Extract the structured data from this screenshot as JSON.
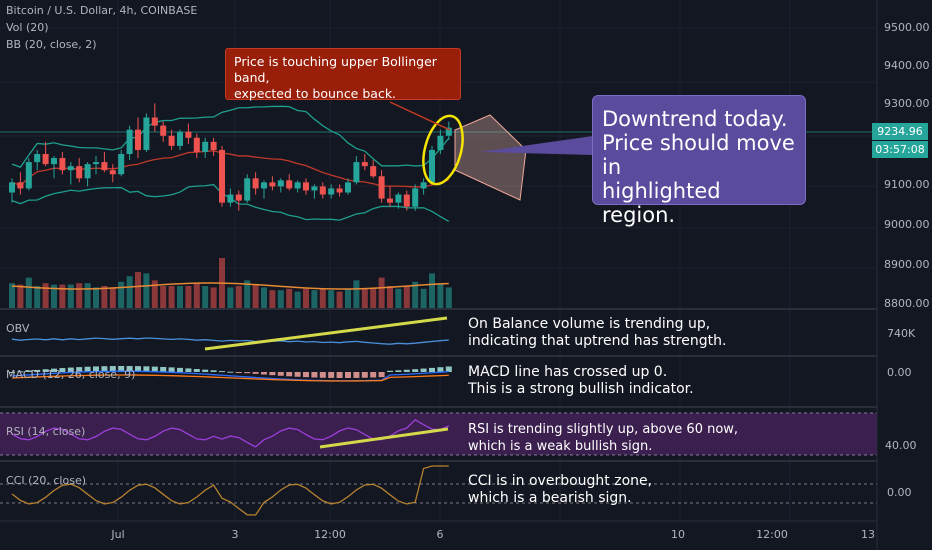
{
  "header": {
    "title": "Bitcoin / U.S. Dollar, 4h, COINBASE",
    "vol_label": "Vol (20)",
    "bb_label": "BB (20, close, 2)"
  },
  "price_axis": {
    "ticks": [
      "9500.00",
      "9400.00",
      "9300.00",
      "9100.00",
      "9000.00",
      "8900.00",
      "8800.00"
    ],
    "current_price": "9234.96",
    "countdown": "03:57:08"
  },
  "time_axis": {
    "ticks": [
      "Jul",
      "3",
      "12:00",
      "6",
      "10",
      "12:00",
      "13"
    ]
  },
  "panes": {
    "obv": {
      "label": "OBV",
      "axis_value": "740K"
    },
    "macd": {
      "label": "MACD (12, 26, close, 9)",
      "axis_value": "0.00"
    },
    "rsi": {
      "label": "RSI (14, close)",
      "axis_value": "40.00"
    },
    "cci": {
      "label": "CCI (20, close)",
      "axis_value": "0.00"
    }
  },
  "annotations": {
    "bollinger_callout": "Price is touching upper Bollinger band,\nexpected to bounce back.",
    "downtrend_callout": "Downtrend today.\nPrice should move in\nhighlighted region.",
    "obv_note": "On Balance volume is trending up,\nindicating that uptrend has strength.",
    "macd_note": "MACD line has crossed up 0.\nThis is a strong bullish indicator.",
    "rsi_note": "RSI is trending slightly up, above 60 now,\nwhich is a weak bullish sign.",
    "cci_note": "CCI is in overbought zone,\nwhich is a bearish sign."
  },
  "colors": {
    "up": "#26a69a",
    "down": "#ef5350",
    "bb_band": "#1e9e8e",
    "bb_basis": "#c0392b",
    "highlight": "#e8b4a8",
    "trendline": "#d4d94a",
    "circle": "#f5e400",
    "rsi_band": "#3b1f4f"
  },
  "chart_data": {
    "type": "candlestick",
    "title": "Bitcoin / U.S. Dollar, 4h, COINBASE",
    "symbol": "BTC/USD",
    "timeframe": "4h",
    "exchange": "COINBASE",
    "y_range": [
      8790,
      9550
    ],
    "last_price": 9234.96,
    "candles": [
      {
        "o": 9075,
        "h": 9110,
        "l": 9050,
        "c": 9100
      },
      {
        "o": 9100,
        "h": 9125,
        "l": 9070,
        "c": 9085
      },
      {
        "o": 9085,
        "h": 9160,
        "l": 9080,
        "c": 9150
      },
      {
        "o": 9150,
        "h": 9180,
        "l": 9130,
        "c": 9170
      },
      {
        "o": 9170,
        "h": 9200,
        "l": 9140,
        "c": 9145
      },
      {
        "o": 9145,
        "h": 9165,
        "l": 9110,
        "c": 9160
      },
      {
        "o": 9160,
        "h": 9175,
        "l": 9120,
        "c": 9130
      },
      {
        "o": 9130,
        "h": 9150,
        "l": 9095,
        "c": 9140
      },
      {
        "o": 9140,
        "h": 9160,
        "l": 9100,
        "c": 9110
      },
      {
        "o": 9110,
        "h": 9150,
        "l": 9090,
        "c": 9145
      },
      {
        "o": 9145,
        "h": 9165,
        "l": 9120,
        "c": 9150
      },
      {
        "o": 9150,
        "h": 9175,
        "l": 9125,
        "c": 9130
      },
      {
        "o": 9130,
        "h": 9145,
        "l": 9100,
        "c": 9120
      },
      {
        "o": 9120,
        "h": 9180,
        "l": 9115,
        "c": 9170
      },
      {
        "o": 9170,
        "h": 9240,
        "l": 9155,
        "c": 9230
      },
      {
        "o": 9230,
        "h": 9260,
        "l": 9160,
        "c": 9180
      },
      {
        "o": 9180,
        "h": 9270,
        "l": 9175,
        "c": 9260
      },
      {
        "o": 9260,
        "h": 9295,
        "l": 9225,
        "c": 9240
      },
      {
        "o": 9240,
        "h": 9250,
        "l": 9200,
        "c": 9215
      },
      {
        "o": 9215,
        "h": 9230,
        "l": 9180,
        "c": 9190
      },
      {
        "o": 9190,
        "h": 9230,
        "l": 9180,
        "c": 9225
      },
      {
        "o": 9225,
        "h": 9245,
        "l": 9195,
        "c": 9210
      },
      {
        "o": 9210,
        "h": 9220,
        "l": 9160,
        "c": 9175
      },
      {
        "o": 9175,
        "h": 9210,
        "l": 9160,
        "c": 9200
      },
      {
        "o": 9200,
        "h": 9210,
        "l": 9165,
        "c": 9180
      },
      {
        "o": 9180,
        "h": 9190,
        "l": 9040,
        "c": 9050
      },
      {
        "o": 9050,
        "h": 9085,
        "l": 9040,
        "c": 9070
      },
      {
        "o": 9070,
        "h": 9080,
        "l": 9030,
        "c": 9055
      },
      {
        "o": 9055,
        "h": 9120,
        "l": 9050,
        "c": 9110
      },
      {
        "o": 9110,
        "h": 9125,
        "l": 9070,
        "c": 9085
      },
      {
        "o": 9085,
        "h": 9105,
        "l": 9060,
        "c": 9100
      },
      {
        "o": 9100,
        "h": 9115,
        "l": 9080,
        "c": 9090
      },
      {
        "o": 9090,
        "h": 9110,
        "l": 9075,
        "c": 9105
      },
      {
        "o": 9105,
        "h": 9120,
        "l": 9080,
        "c": 9085
      },
      {
        "o": 9085,
        "h": 9105,
        "l": 9075,
        "c": 9100
      },
      {
        "o": 9100,
        "h": 9110,
        "l": 9070,
        "c": 9080
      },
      {
        "o": 9080,
        "h": 9095,
        "l": 9060,
        "c": 9090
      },
      {
        "o": 9090,
        "h": 9100,
        "l": 9060,
        "c": 9070
      },
      {
        "o": 9070,
        "h": 9095,
        "l": 9060,
        "c": 9085
      },
      {
        "o": 9085,
        "h": 9095,
        "l": 9065,
        "c": 9075
      },
      {
        "o": 9075,
        "h": 9110,
        "l": 9070,
        "c": 9100
      },
      {
        "o": 9100,
        "h": 9165,
        "l": 9095,
        "c": 9150
      },
      {
        "o": 9150,
        "h": 9170,
        "l": 9130,
        "c": 9140
      },
      {
        "o": 9140,
        "h": 9155,
        "l": 9110,
        "c": 9115
      },
      {
        "o": 9115,
        "h": 9130,
        "l": 9050,
        "c": 9060
      },
      {
        "o": 9060,
        "h": 9090,
        "l": 9040,
        "c": 9050
      },
      {
        "o": 9050,
        "h": 9075,
        "l": 9035,
        "c": 9070
      },
      {
        "o": 9070,
        "h": 9080,
        "l": 9030,
        "c": 9040
      },
      {
        "o": 9040,
        "h": 9095,
        "l": 9030,
        "c": 9085
      },
      {
        "o": 9085,
        "h": 9110,
        "l": 9070,
        "c": 9100
      },
      {
        "o": 9100,
        "h": 9190,
        "l": 9095,
        "c": 9180
      },
      {
        "o": 9180,
        "h": 9230,
        "l": 9170,
        "c": 9215
      },
      {
        "o": 9215,
        "h": 9250,
        "l": 9205,
        "c": 9235
      }
    ]
  }
}
